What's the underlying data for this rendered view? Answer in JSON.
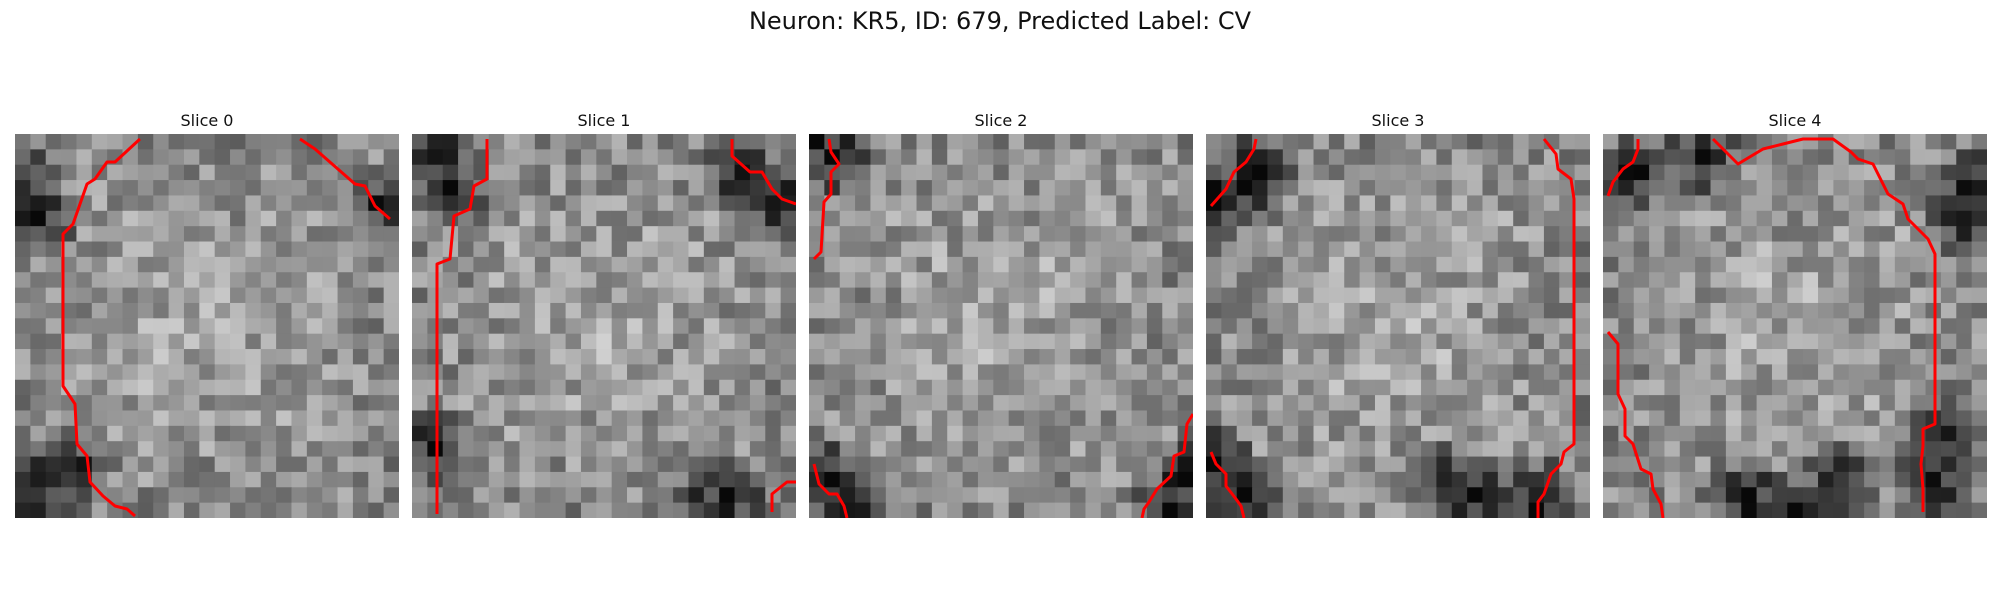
{
  "figure": {
    "title": "Neuron: KR5, ID: 679, Predicted Label: CV"
  },
  "overlay_color": "#ff0000",
  "panels": [
    {
      "title": "Slice 0"
    },
    {
      "title": "Slice 1"
    },
    {
      "title": "Slice 2"
    },
    {
      "title": "Slice 3"
    },
    {
      "title": "Slice 4"
    }
  ]
}
